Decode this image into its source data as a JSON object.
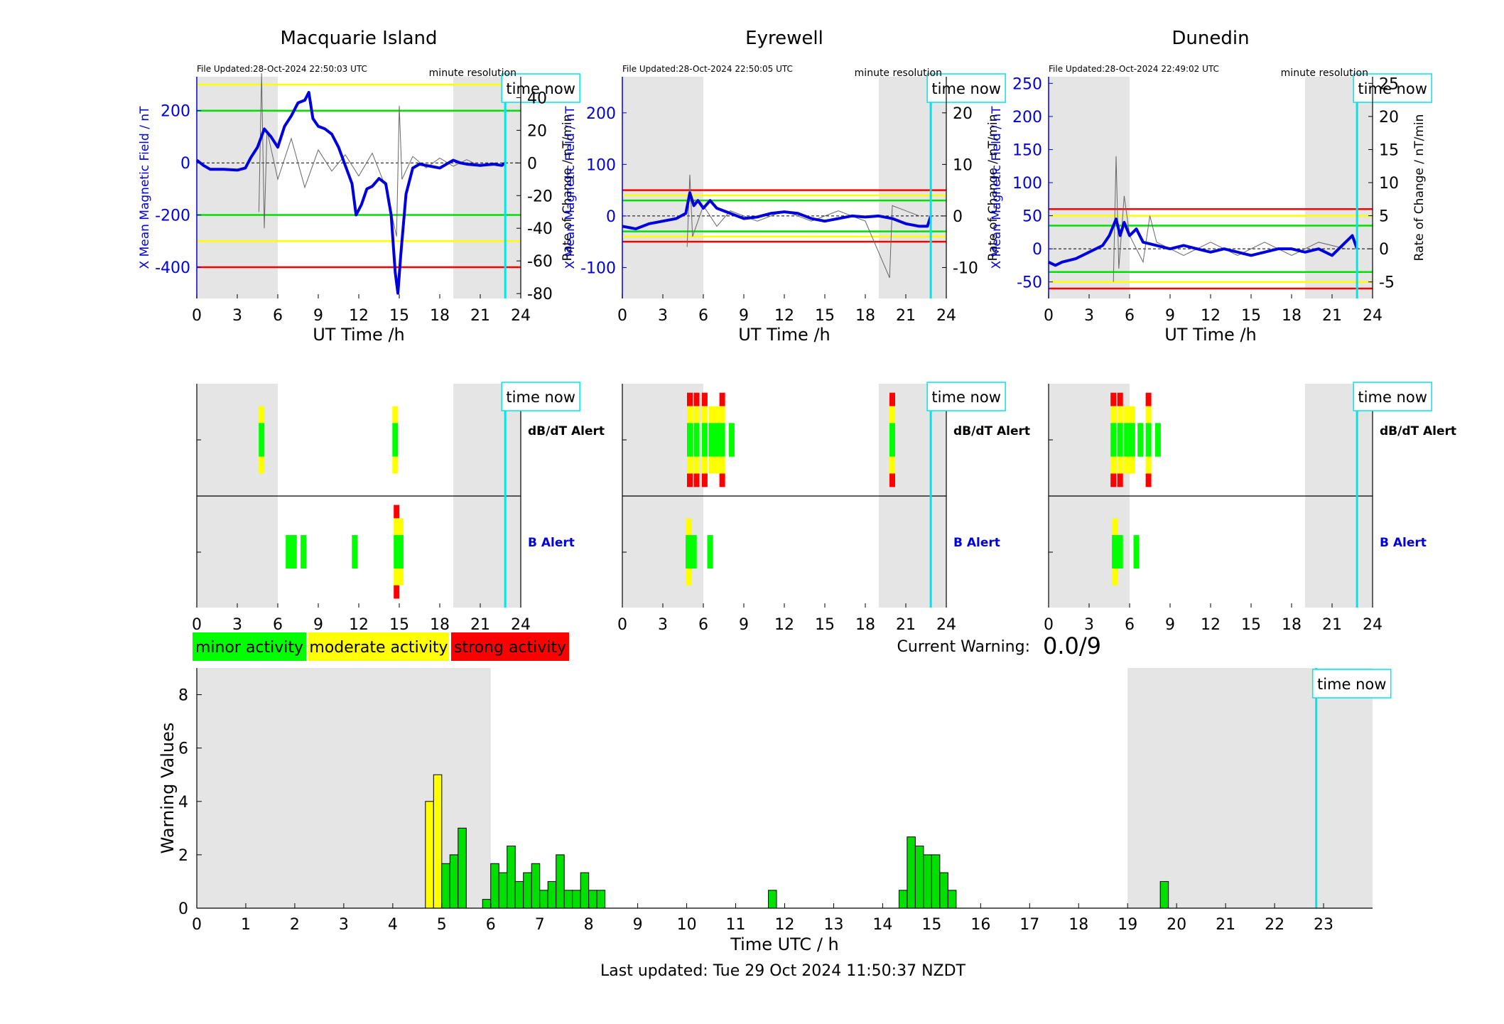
{
  "stations": [
    {
      "name": "Macquarie Island",
      "file_updated": "File Updated:28-Oct-2024 22:50:03 UTC",
      "resolution": "minute resolution",
      "ylabel_left": "X Mean Magnetic Field / nT",
      "ylabel_right": "Rate of Change / nT/min"
    },
    {
      "name": "Eyrewell",
      "file_updated": "File Updated:28-Oct-2024 22:50:05 UTC",
      "resolution": "minute resolution",
      "ylabel_left": "X Mean Magnetic Field / nT",
      "ylabel_right": "Rate of Change / nT/min"
    },
    {
      "name": "Dunedin",
      "file_updated": "File Updated:28-Oct-2024 22:49:02 UTC",
      "resolution": "minute resolution",
      "ylabel_left": "X Mean Magnetic Field / nT",
      "ylabel_right": "Rate of Change / nT/min"
    }
  ],
  "time_now_label": "time now",
  "ut_xlabel": "UT Time /h",
  "alert_labels": {
    "dbdt": "dB/dT Alert",
    "b": "B Alert"
  },
  "legend": {
    "minor": "minor activity",
    "moderate": "moderate activity",
    "strong": "strong activity"
  },
  "current_warning_label": "Current Warning:",
  "current_warning_value": "0.0/9",
  "warning_ylabel": "Warning Values",
  "warning_xlabel": "Time UTC / h",
  "last_updated": "Last updated: Tue 29 Oct 2024 11:50:37 NZDT",
  "colors": {
    "minor": "#00ff00",
    "moderate": "#ffff00",
    "strong": "#ff0000",
    "time_now": "#00e5ee",
    "field_line": "#0000dd",
    "night": "#e5e5e5"
  },
  "chart_data": [
    {
      "type": "line",
      "station": "Macquarie Island",
      "x_range": [
        0,
        24
      ],
      "xticks": [
        0,
        3,
        6,
        9,
        12,
        15,
        18,
        21,
        24
      ],
      "left_ylim": [
        -520,
        330
      ],
      "left_yticks": [
        -400,
        -200,
        0,
        200
      ],
      "right_ylim": [
        -83,
        52.8
      ],
      "right_yticks": [
        -80,
        -60,
        -40,
        -20,
        0,
        20,
        40
      ],
      "thresholds": [
        {
          "value": 200,
          "color": "green"
        },
        {
          "value": -200,
          "color": "green"
        },
        {
          "value": 300,
          "color": "yellow"
        },
        {
          "value": -300,
          "color": "yellow"
        },
        {
          "value": -400,
          "color": "red"
        }
      ],
      "night_shading": [
        [
          0,
          6
        ],
        [
          19,
          24
        ]
      ],
      "time_now": 22.85,
      "field_series": [
        [
          0,
          10
        ],
        [
          0.5,
          -10
        ],
        [
          1,
          -25
        ],
        [
          2,
          -25
        ],
        [
          3,
          -28
        ],
        [
          3.6,
          -20
        ],
        [
          4,
          20
        ],
        [
          4.5,
          60
        ],
        [
          5,
          130
        ],
        [
          5.5,
          100
        ],
        [
          6,
          60
        ],
        [
          6.5,
          140
        ],
        [
          7,
          180
        ],
        [
          7.5,
          230
        ],
        [
          8,
          240
        ],
        [
          8.3,
          270
        ],
        [
          8.6,
          170
        ],
        [
          9,
          140
        ],
        [
          9.5,
          130
        ],
        [
          10,
          110
        ],
        [
          10.5,
          60
        ],
        [
          11,
          -10
        ],
        [
          11.5,
          -80
        ],
        [
          11.8,
          -200
        ],
        [
          12.2,
          -160
        ],
        [
          12.6,
          -100
        ],
        [
          13,
          -90
        ],
        [
          13.5,
          -60
        ],
        [
          14,
          -80
        ],
        [
          14.4,
          -200
        ],
        [
          14.7,
          -420
        ],
        [
          14.9,
          -500
        ],
        [
          15.1,
          -360
        ],
        [
          15.5,
          -120
        ],
        [
          16,
          -20
        ],
        [
          16.5,
          -5
        ],
        [
          17,
          -10
        ],
        [
          17.5,
          -15
        ],
        [
          18,
          -20
        ],
        [
          19,
          10
        ],
        [
          19.5,
          0
        ],
        [
          20,
          -5
        ],
        [
          21,
          -10
        ],
        [
          22,
          -5
        ],
        [
          22.6,
          -10
        ],
        [
          22.85,
          0
        ]
      ],
      "rate_series": [
        [
          4.6,
          -30
        ],
        [
          4.8,
          55
        ],
        [
          5,
          -40
        ],
        [
          5.2,
          20
        ],
        [
          6,
          -10
        ],
        [
          7,
          15
        ],
        [
          8,
          -15
        ],
        [
          9,
          8
        ],
        [
          10,
          -5
        ],
        [
          11,
          5
        ],
        [
          12,
          -8
        ],
        [
          13,
          6
        ],
        [
          14,
          -15
        ],
        [
          14.8,
          -45
        ],
        [
          15,
          35
        ],
        [
          15.2,
          -10
        ],
        [
          16,
          4
        ],
        [
          17,
          -3
        ],
        [
          18,
          3
        ],
        [
          19,
          -2
        ],
        [
          20,
          2
        ],
        [
          21,
          -2
        ],
        [
          22,
          0
        ]
      ]
    },
    {
      "type": "line",
      "station": "Eyrewell",
      "x_range": [
        0,
        24
      ],
      "xticks": [
        0,
        3,
        6,
        9,
        12,
        15,
        18,
        21,
        24
      ],
      "left_ylim": [
        -160,
        270
      ],
      "left_yticks": [
        -100,
        0,
        100,
        200
      ],
      "right_ylim": [
        -16,
        27
      ],
      "right_yticks": [
        -10,
        0,
        10,
        20
      ],
      "thresholds": [
        {
          "value": 50,
          "color": "red"
        },
        {
          "value": -50,
          "color": "red"
        },
        {
          "value": 40,
          "color": "yellow"
        },
        {
          "value": -40,
          "color": "yellow"
        },
        {
          "value": 30,
          "color": "green"
        },
        {
          "value": -30,
          "color": "green"
        }
      ],
      "night_shading": [
        [
          0,
          6
        ],
        [
          19,
          24
        ]
      ],
      "time_now": 22.85,
      "field_series": [
        [
          0,
          -20
        ],
        [
          1,
          -25
        ],
        [
          2,
          -15
        ],
        [
          3,
          -10
        ],
        [
          4,
          -5
        ],
        [
          4.7,
          5
        ],
        [
          5,
          45
        ],
        [
          5.3,
          20
        ],
        [
          5.6,
          30
        ],
        [
          6,
          15
        ],
        [
          6.5,
          30
        ],
        [
          7,
          15
        ],
        [
          8,
          5
        ],
        [
          9,
          -5
        ],
        [
          10,
          -2
        ],
        [
          11,
          5
        ],
        [
          12,
          8
        ],
        [
          13,
          5
        ],
        [
          14,
          -5
        ],
        [
          15,
          -10
        ],
        [
          16,
          -5
        ],
        [
          17,
          0
        ],
        [
          18,
          -2
        ],
        [
          19,
          0
        ],
        [
          20,
          -5
        ],
        [
          21,
          -15
        ],
        [
          22,
          -20
        ],
        [
          22.6,
          -20
        ],
        [
          22.85,
          0
        ]
      ],
      "rate_series": [
        [
          4.8,
          -6
        ],
        [
          5,
          8
        ],
        [
          5.2,
          -4
        ],
        [
          6,
          2
        ],
        [
          7,
          -2
        ],
        [
          8,
          1
        ],
        [
          10,
          -1
        ],
        [
          12,
          1
        ],
        [
          14,
          -1
        ],
        [
          16,
          1
        ],
        [
          18,
          -1
        ],
        [
          19.8,
          -12
        ],
        [
          20,
          2
        ],
        [
          22,
          0
        ]
      ]
    },
    {
      "type": "line",
      "station": "Dunedin",
      "x_range": [
        0,
        24
      ],
      "xticks": [
        0,
        3,
        6,
        9,
        12,
        15,
        18,
        21,
        24
      ],
      "left_ylim": [
        -75,
        260
      ],
      "left_yticks": [
        -50,
        0,
        50,
        100,
        150,
        200,
        250
      ],
      "right_ylim": [
        -7.5,
        26
      ],
      "right_yticks": [
        -5,
        0,
        5,
        10,
        15,
        20,
        25
      ],
      "thresholds": [
        {
          "value": 60,
          "color": "red"
        },
        {
          "value": -60,
          "color": "red"
        },
        {
          "value": 50,
          "color": "yellow"
        },
        {
          "value": -50,
          "color": "yellow"
        },
        {
          "value": 35,
          "color": "green"
        },
        {
          "value": -35,
          "color": "green"
        }
      ],
      "night_shading": [
        [
          0,
          6
        ],
        [
          19,
          24
        ]
      ],
      "time_now": 22.85,
      "field_series": [
        [
          0,
          -20
        ],
        [
          0.5,
          -25
        ],
        [
          1,
          -20
        ],
        [
          2,
          -15
        ],
        [
          3,
          -5
        ],
        [
          4,
          5
        ],
        [
          4.5,
          20
        ],
        [
          5,
          45
        ],
        [
          5.3,
          20
        ],
        [
          5.6,
          40
        ],
        [
          6,
          20
        ],
        [
          6.5,
          30
        ],
        [
          7,
          10
        ],
        [
          8,
          5
        ],
        [
          9,
          0
        ],
        [
          10,
          5
        ],
        [
          11,
          0
        ],
        [
          12,
          -5
        ],
        [
          13,
          0
        ],
        [
          14,
          -5
        ],
        [
          15,
          -10
        ],
        [
          16,
          -5
        ],
        [
          17,
          0
        ],
        [
          18,
          0
        ],
        [
          19,
          -5
        ],
        [
          20,
          0
        ],
        [
          21,
          -10
        ],
        [
          22,
          10
        ],
        [
          22.5,
          20
        ],
        [
          22.85,
          0
        ]
      ],
      "rate_series": [
        [
          4.8,
          -5
        ],
        [
          5,
          14
        ],
        [
          5.2,
          -3
        ],
        [
          5.6,
          8
        ],
        [
          6,
          2
        ],
        [
          7,
          -2
        ],
        [
          7.5,
          5
        ],
        [
          8,
          1
        ],
        [
          10,
          -1
        ],
        [
          12,
          1
        ],
        [
          14,
          -1
        ],
        [
          16,
          1
        ],
        [
          18,
          -1
        ],
        [
          20,
          1
        ],
        [
          22,
          0
        ]
      ]
    },
    {
      "type": "alert_timeline",
      "station": "Macquarie Island",
      "rows": [
        "dB/dT Alert",
        "B Alert"
      ],
      "dbdt_alerts": [
        {
          "t": 4.8,
          "level": "moderate"
        },
        {
          "t": 14.7,
          "level": "moderate"
        }
      ],
      "b_alerts": [
        {
          "t": 6.8,
          "level": "minor"
        },
        {
          "t": 7.2,
          "level": "minor"
        },
        {
          "t": 7.9,
          "level": "minor"
        },
        {
          "t": 11.7,
          "level": "minor"
        },
        {
          "t": 14.8,
          "level": "strong"
        },
        {
          "t": 15.1,
          "level": "moderate"
        }
      ]
    },
    {
      "type": "alert_timeline",
      "station": "Eyrewell",
      "rows": [
        "dB/dT Alert",
        "B Alert"
      ],
      "dbdt_alerts": [
        {
          "t": 5.0,
          "level": "strong"
        },
        {
          "t": 5.5,
          "level": "strong"
        },
        {
          "t": 6.1,
          "level": "strong"
        },
        {
          "t": 6.6,
          "level": "moderate"
        },
        {
          "t": 7.0,
          "level": "moderate"
        },
        {
          "t": 7.4,
          "level": "strong"
        },
        {
          "t": 8.1,
          "level": "minor"
        },
        {
          "t": 20.0,
          "level": "strong"
        }
      ],
      "b_alerts": [
        {
          "t": 4.9,
          "level": "moderate"
        },
        {
          "t": 5.3,
          "level": "minor"
        },
        {
          "t": 6.5,
          "level": "minor"
        }
      ]
    },
    {
      "type": "alert_timeline",
      "station": "Dunedin",
      "rows": [
        "dB/dT Alert",
        "B Alert"
      ],
      "dbdt_alerts": [
        {
          "t": 4.8,
          "level": "strong"
        },
        {
          "t": 5.3,
          "level": "strong"
        },
        {
          "t": 5.8,
          "level": "moderate"
        },
        {
          "t": 6.2,
          "level": "moderate"
        },
        {
          "t": 6.8,
          "level": "minor"
        },
        {
          "t": 7.4,
          "level": "strong"
        },
        {
          "t": 8.1,
          "level": "minor"
        }
      ],
      "b_alerts": [
        {
          "t": 4.9,
          "level": "moderate"
        },
        {
          "t": 5.3,
          "level": "minor"
        },
        {
          "t": 6.5,
          "level": "minor"
        }
      ]
    },
    {
      "type": "bar",
      "title": "",
      "xlabel": "Time UTC / h",
      "ylabel": "Warning Values",
      "xlim": [
        0,
        24
      ],
      "ylim": [
        0,
        9
      ],
      "xticks": [
        0,
        1,
        2,
        3,
        4,
        5,
        6,
        7,
        8,
        9,
        10,
        11,
        12,
        13,
        14,
        15,
        16,
        17,
        18,
        19,
        20,
        21,
        22,
        23
      ],
      "yticks": [
        0,
        2,
        4,
        6,
        8
      ],
      "night_shading": [
        [
          0,
          6
        ],
        [
          19,
          24
        ]
      ],
      "time_now": 22.85,
      "bar_width_h": 0.1667,
      "bars": [
        {
          "t": 4.75,
          "v": 4,
          "color": "yellow"
        },
        {
          "t": 4.917,
          "v": 5,
          "color": "yellow"
        },
        {
          "t": 5.083,
          "v": 1.67,
          "color": "green"
        },
        {
          "t": 5.25,
          "v": 2,
          "color": "green"
        },
        {
          "t": 5.417,
          "v": 3,
          "color": "green"
        },
        {
          "t": 5.917,
          "v": 0.33,
          "color": "green"
        },
        {
          "t": 6.083,
          "v": 1.67,
          "color": "green"
        },
        {
          "t": 6.25,
          "v": 1.33,
          "color": "green"
        },
        {
          "t": 6.417,
          "v": 2.33,
          "color": "green"
        },
        {
          "t": 6.583,
          "v": 1,
          "color": "green"
        },
        {
          "t": 6.75,
          "v": 1.33,
          "color": "green"
        },
        {
          "t": 6.917,
          "v": 1.67,
          "color": "green"
        },
        {
          "t": 7.083,
          "v": 0.67,
          "color": "green"
        },
        {
          "t": 7.25,
          "v": 1,
          "color": "green"
        },
        {
          "t": 7.417,
          "v": 2,
          "color": "green"
        },
        {
          "t": 7.583,
          "v": 0.67,
          "color": "green"
        },
        {
          "t": 7.75,
          "v": 0.67,
          "color": "green"
        },
        {
          "t": 7.917,
          "v": 1.33,
          "color": "green"
        },
        {
          "t": 8.083,
          "v": 0.67,
          "color": "green"
        },
        {
          "t": 8.25,
          "v": 0.67,
          "color": "green"
        },
        {
          "t": 11.75,
          "v": 0.67,
          "color": "green"
        },
        {
          "t": 14.417,
          "v": 0.67,
          "color": "green"
        },
        {
          "t": 14.583,
          "v": 2.67,
          "color": "green"
        },
        {
          "t": 14.75,
          "v": 2.33,
          "color": "green"
        },
        {
          "t": 14.917,
          "v": 2,
          "color": "green"
        },
        {
          "t": 15.083,
          "v": 2,
          "color": "green"
        },
        {
          "t": 15.25,
          "v": 1.33,
          "color": "green"
        },
        {
          "t": 15.417,
          "v": 0.67,
          "color": "green"
        },
        {
          "t": 19.75,
          "v": 1,
          "color": "green"
        }
      ]
    }
  ]
}
